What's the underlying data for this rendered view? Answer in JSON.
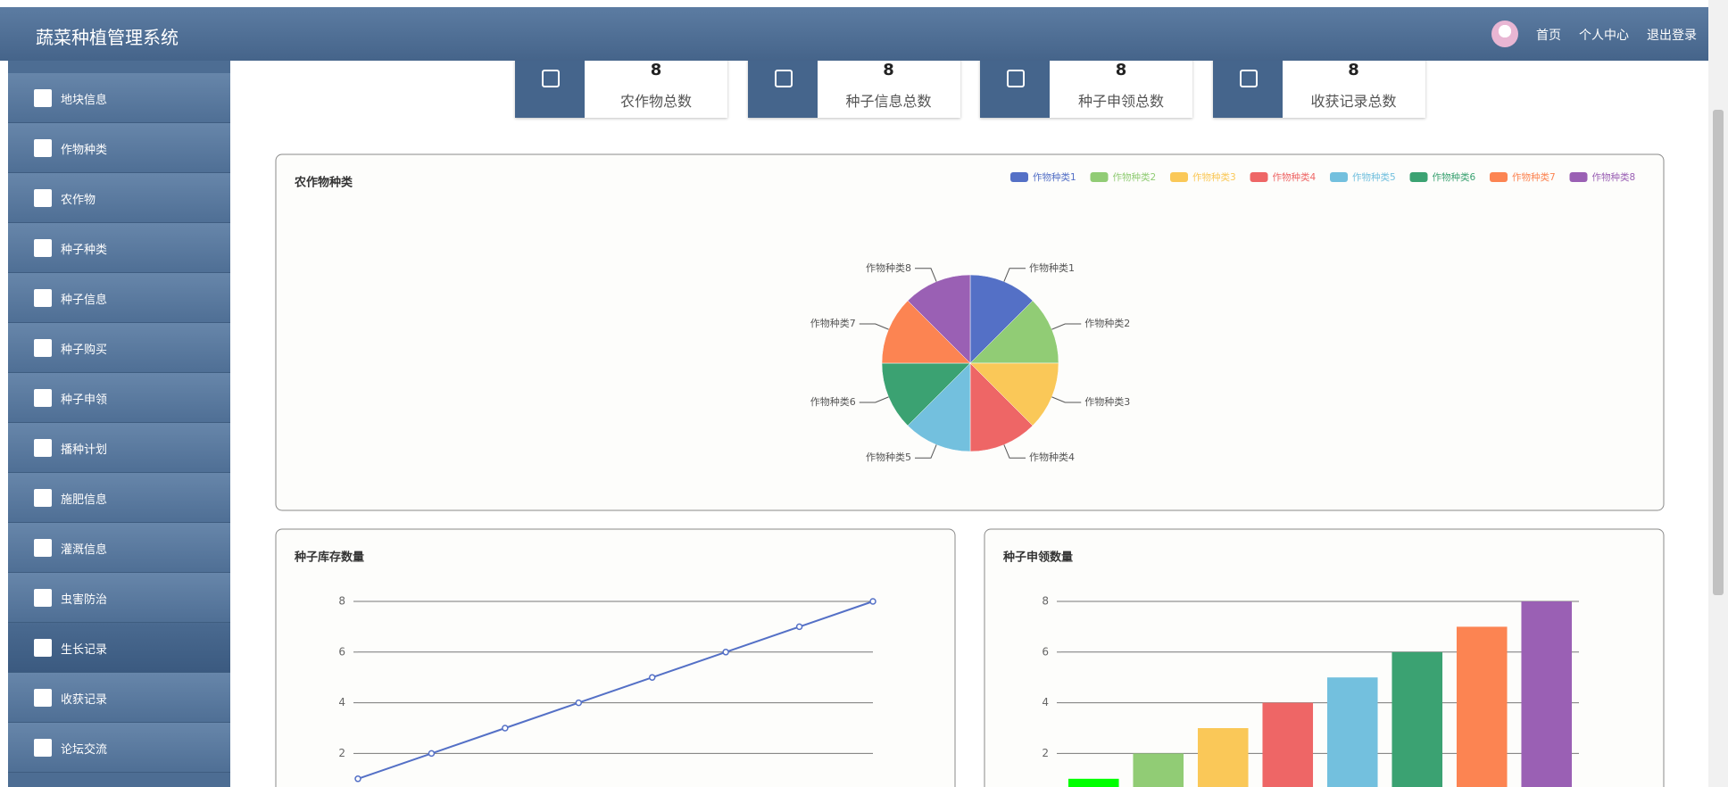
{
  "header": {
    "title": "蔬菜种植管理系统",
    "nav": [
      "首页",
      "个人中心",
      "退出登录"
    ]
  },
  "sidebar": {
    "items": [
      "地块信息",
      "作物种类",
      "农作物",
      "种子种类",
      "种子信息",
      "种子购买",
      "种子申领",
      "播种计划",
      "施肥信息",
      "灌溉信息",
      "虫害防治",
      "生长记录",
      "收获记录",
      "论坛交流"
    ]
  },
  "stats": [
    {
      "value": 8,
      "label": "农作物总数"
    },
    {
      "value": 8,
      "label": "种子信息总数"
    },
    {
      "value": 8,
      "label": "种子申领总数"
    },
    {
      "value": 8,
      "label": "收获记录总数"
    }
  ],
  "chart_data": [
    {
      "type": "pie",
      "title": "农作物种类",
      "categories": [
        "作物种类1",
        "作物种类2",
        "作物种类3",
        "作物种类4",
        "作物种类5",
        "作物种类6",
        "作物种类7",
        "作物种类8"
      ],
      "values": [
        1,
        1,
        1,
        1,
        1,
        1,
        1,
        1
      ],
      "colors": [
        "#5470c6",
        "#91cc75",
        "#fac858",
        "#ee6666",
        "#73c0de",
        "#3ba272",
        "#fc8452",
        "#9a60b4"
      ],
      "legend": "top-right"
    },
    {
      "type": "line",
      "title": "种子库存数量",
      "categories": [
        null,
        null,
        null,
        null,
        null,
        null,
        null,
        null
      ],
      "values": [
        1,
        2,
        3,
        4,
        5,
        6,
        7,
        8
      ],
      "color": "#5470c6",
      "ylim": [
        0,
        8
      ],
      "yticks": [
        2,
        4,
        6,
        8
      ],
      "grid": true
    },
    {
      "type": "bar",
      "title": "种子申领数量",
      "categories": [
        null,
        null,
        null,
        null,
        null,
        null,
        null,
        null
      ],
      "values": [
        1,
        2,
        3,
        4,
        5,
        6,
        7,
        8
      ],
      "colors": [
        "#00ff00",
        "#91cc75",
        "#fac858",
        "#ee6666",
        "#73c0de",
        "#3ba272",
        "#fc8452",
        "#9a60b4"
      ],
      "ylim": [
        0,
        8
      ],
      "yticks": [
        2,
        4,
        6,
        8
      ],
      "grid": true
    }
  ]
}
